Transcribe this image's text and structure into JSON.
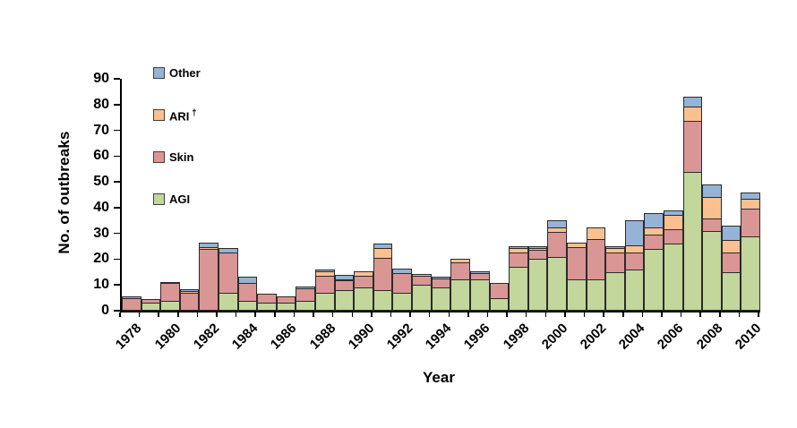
{
  "figure": {
    "y_axis_title": "No. of outbreaks",
    "x_axis_title": "Year",
    "background": "#ffffff",
    "axis_color": "#000000"
  },
  "legend": {
    "position": "inside-top-left",
    "items": [
      {
        "label": "Other",
        "superscript": "",
        "color": "#95B3D7"
      },
      {
        "label": "ARI",
        "superscript": "†",
        "color": "#FAC090"
      },
      {
        "label": "Skin",
        "superscript": "",
        "color": "#D99694"
      },
      {
        "label": "AGI",
        "superscript": "",
        "color": "#C3D69B"
      }
    ]
  },
  "chart_data": {
    "type": "bar",
    "stacked": true,
    "title": "",
    "xlabel": "Year",
    "ylabel": "No. of outbreaks",
    "ylim": [
      0,
      90
    ],
    "ytick_step": 10,
    "grid": false,
    "legend_position": "inside-top-left",
    "categories": [
      1978,
      1979,
      1980,
      1981,
      1982,
      1983,
      1984,
      1985,
      1986,
      1987,
      1988,
      1989,
      1990,
      1991,
      1992,
      1993,
      1994,
      1995,
      1996,
      1997,
      1998,
      1999,
      2000,
      2001,
      2002,
      2003,
      2004,
      2005,
      2006,
      2007,
      2008,
      2009,
      2010
    ],
    "x_tick_labels": [
      "1978",
      "1980",
      "1982",
      "1984",
      "1986",
      "1988",
      "1990",
      "1992",
      "1994",
      "1996",
      "1998",
      "2000",
      "2002",
      "2004",
      "2006",
      "2008",
      "2010"
    ],
    "series": [
      {
        "name": "AGI",
        "color": "#C3D69B",
        "values": [
          0,
          3,
          4,
          0,
          0,
          7,
          4,
          3,
          3,
          4,
          7,
          8,
          9,
          8,
          7,
          10,
          9,
          12,
          12,
          5,
          17,
          20,
          21,
          12,
          12,
          15,
          16,
          24,
          26,
          54,
          31,
          15,
          29
        ]
      },
      {
        "name": "Skin",
        "color": "#D99694",
        "values": [
          5,
          2,
          7,
          7,
          24,
          16,
          7,
          4,
          3,
          5,
          7,
          4,
          5,
          13,
          8,
          4,
          4,
          7,
          3,
          6,
          6,
          4,
          10,
          13,
          16,
          8,
          7,
          6,
          6,
          20,
          5,
          8,
          11
        ]
      },
      {
        "name": "ARI",
        "color": "#FAC090",
        "values": [
          0,
          0,
          0,
          1,
          1,
          0,
          0,
          0,
          0,
          0,
          2,
          1,
          2,
          4,
          0,
          1,
          0,
          2,
          0,
          0,
          2,
          1,
          2,
          2,
          5,
          2,
          3,
          3,
          6,
          6,
          9,
          5,
          4
        ]
      },
      {
        "name": "Other",
        "color": "#95B3D7",
        "values": [
          1,
          0,
          1,
          1,
          2,
          2,
          3,
          0,
          0,
          1,
          1,
          2,
          0,
          2,
          2,
          0,
          1,
          0,
          1,
          0,
          1,
          1,
          3,
          0,
          0,
          1,
          10,
          6,
          2,
          4,
          5,
          6,
          3
        ]
      }
    ]
  }
}
